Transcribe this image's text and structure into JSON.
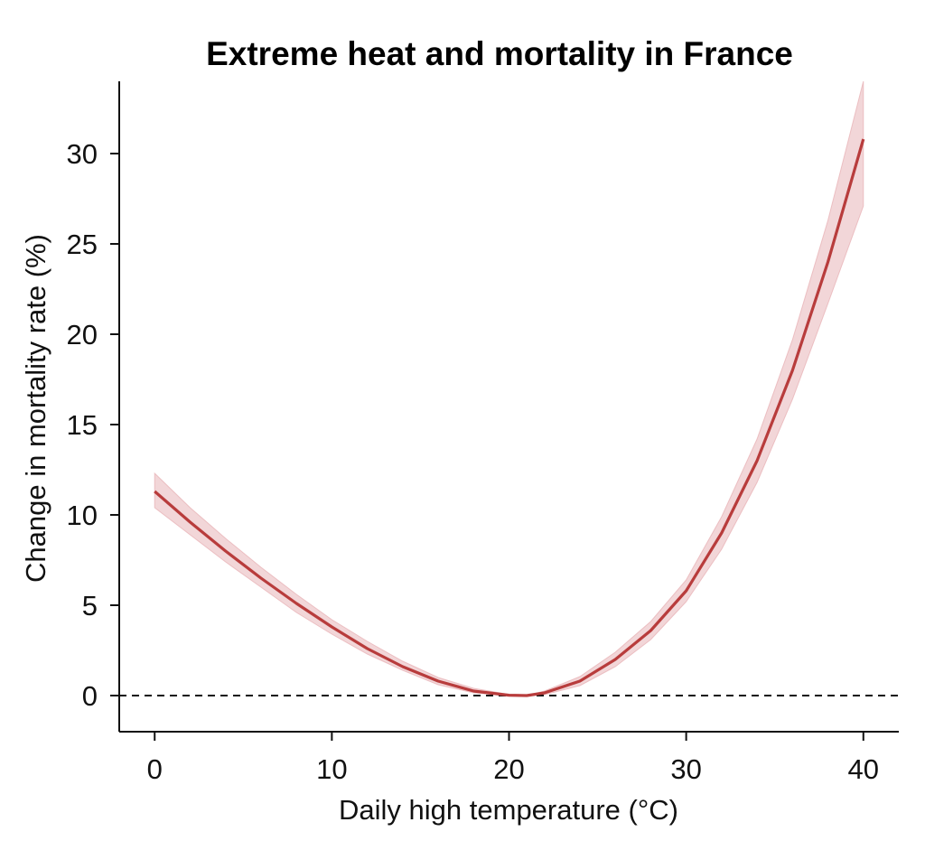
{
  "chart_data": {
    "type": "line",
    "title": "Extreme heat and mortality in France",
    "xlabel": "Daily high temperature (°C)",
    "ylabel": "Change in mortality rate (%)",
    "xlim": [
      -2,
      42
    ],
    "ylim": [
      -2,
      34
    ],
    "x_ticks": [
      0,
      10,
      20,
      30,
      40
    ],
    "y_ticks": [
      0,
      5,
      10,
      15,
      20,
      25,
      30
    ],
    "x_tick_labels": [
      "0",
      "10",
      "20",
      "30",
      "40"
    ],
    "y_tick_labels": [
      "0",
      "5",
      "10",
      "15",
      "20",
      "25",
      "30"
    ],
    "grid": false,
    "reference_line": {
      "y": 0,
      "style": "dashed",
      "color": "#111111"
    },
    "colors": {
      "line": "#b83c3c",
      "band": "#e8b4b8"
    },
    "series": [
      {
        "x": [
          0,
          2,
          4,
          6,
          8,
          10,
          12,
          14,
          16,
          18,
          20,
          21,
          22,
          24,
          26,
          28,
          30,
          32,
          34,
          36,
          38,
          40
        ],
        "y": [
          11.3,
          9.6,
          8.0,
          6.5,
          5.1,
          3.8,
          2.6,
          1.6,
          0.8,
          0.25,
          0.02,
          0.0,
          0.15,
          0.8,
          2.0,
          3.6,
          5.8,
          9.0,
          13.0,
          18.0,
          24.0,
          30.8
        ],
        "lower": [
          10.4,
          8.9,
          7.4,
          6.0,
          4.6,
          3.4,
          2.3,
          1.4,
          0.6,
          0.15,
          0.0,
          0.0,
          0.05,
          0.55,
          1.6,
          3.1,
          5.2,
          8.1,
          11.8,
          16.4,
          21.7,
          27.1
        ],
        "upper": [
          12.3,
          10.4,
          8.7,
          7.1,
          5.6,
          4.2,
          3.0,
          1.9,
          1.0,
          0.4,
          0.06,
          0.0,
          0.25,
          1.05,
          2.4,
          4.1,
          6.4,
          9.9,
          14.2,
          19.7,
          26.3,
          34.0
        ]
      }
    ]
  }
}
